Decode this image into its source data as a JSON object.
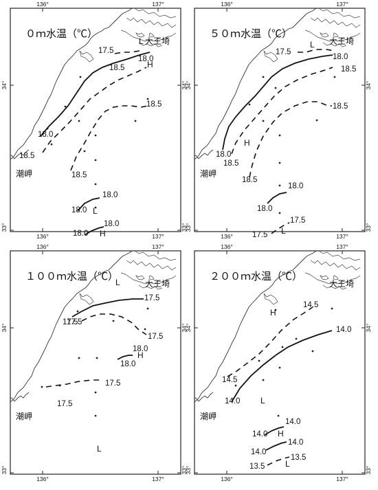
{
  "panels": [
    {
      "title": "０ｍ水温（℃）",
      "coords": {
        "lon_left": "136°",
        "lon_right": "137°",
        "lat_top": "34°",
        "lat_bottom": "33°"
      },
      "places": {
        "cape_daio": "大王埼",
        "cape_shio": "潮岬"
      },
      "isotherms": [
        {
          "value": 18.0,
          "style": "solid",
          "labels": [
            "18.0",
            "18.0"
          ]
        },
        {
          "value": 18.5,
          "style": "dashed",
          "labels": [
            "18.5",
            "18.5",
            "18.5"
          ]
        },
        {
          "value": 18.5,
          "style": "dashed",
          "labels": [
            "18.5"
          ]
        },
        {
          "value": 17.5,
          "style": "dashed",
          "labels": [
            "17.5"
          ]
        },
        {
          "value": 18.0,
          "style": "solid",
          "labels": [
            "18.0",
            "18.0"
          ]
        },
        {
          "value": 18.0,
          "style": "solid",
          "labels": [
            "18.0",
            "18.0"
          ]
        }
      ],
      "markers": [
        "L",
        "H",
        "L",
        "H"
      ]
    },
    {
      "title": "５０ｍ水温（℃）",
      "coords": {
        "lon_left": "136°",
        "lon_right": "137°",
        "lat_top": "34°",
        "lat_bottom": "33°"
      },
      "places": {
        "cape_daio": "大王埼",
        "cape_shio": "潮岬"
      },
      "isotherms": [
        {
          "value": 18.0,
          "style": "solid",
          "labels": [
            "18.0",
            "18.0"
          ]
        },
        {
          "value": 18.5,
          "style": "dashed",
          "labels": [
            "18.5",
            "18.5"
          ]
        },
        {
          "value": 18.5,
          "style": "dashed",
          "labels": [
            "18.5",
            "18.5"
          ]
        },
        {
          "value": 17.5,
          "style": "dashed",
          "labels": [
            "17.5"
          ]
        },
        {
          "value": 18.0,
          "style": "solid",
          "labels": [
            "18.0",
            "18.0"
          ]
        },
        {
          "value": 17.5,
          "style": "dashed",
          "labels": [
            "17.5",
            "17.5"
          ]
        }
      ],
      "markers": [
        "L",
        "H",
        "L"
      ]
    },
    {
      "title": "１００ｍ水温（℃）",
      "coords": {
        "lon_left": "136°",
        "lon_right": "137°",
        "lat_top": "34°",
        "lat_bottom": "33°"
      },
      "places": {
        "cape_daio": "大王埼",
        "cape_shio": "潮岬"
      },
      "isotherms": [
        {
          "value": 17.5,
          "style": "solid",
          "labels": [
            "17.5",
            "17.5"
          ]
        },
        {
          "value": 17.5,
          "style": "dashed",
          "labels": [
            "17.5",
            "17.5"
          ]
        },
        {
          "value": 17.5,
          "style": "dashed",
          "labels": [
            "17.5",
            "17.5"
          ]
        },
        {
          "value": 18.0,
          "style": "solid",
          "labels": [
            "18.0",
            "18.0"
          ]
        }
      ],
      "markers": [
        "L",
        "H",
        "L"
      ]
    },
    {
      "title": "２００ｍ水温（℃）",
      "coords": {
        "lon_left": "136°",
        "lon_right": "137°",
        "lat_top": "34°",
        "lat_bottom": "33°"
      },
      "places": {
        "cape_daio": "大王埼",
        "cape_shio": "潮岬"
      },
      "isotherms": [
        {
          "value": 14.5,
          "style": "dashed",
          "labels": [
            "14.5",
            "14.5"
          ]
        },
        {
          "value": 14.0,
          "style": "solid",
          "labels": [
            "14.0",
            "14.0"
          ]
        },
        {
          "value": 14.0,
          "style": "solid",
          "labels": [
            "14.0",
            "14.0"
          ]
        },
        {
          "value": 14.0,
          "style": "solid",
          "labels": [
            "14.0",
            "14.0"
          ]
        },
        {
          "value": 13.5,
          "style": "dashed",
          "labels": [
            "13.5",
            "13.5"
          ]
        }
      ],
      "markers": [
        "H",
        "L",
        "H",
        "L"
      ]
    }
  ],
  "colors": {
    "ink": "#111111",
    "paper": "#ffffff"
  }
}
